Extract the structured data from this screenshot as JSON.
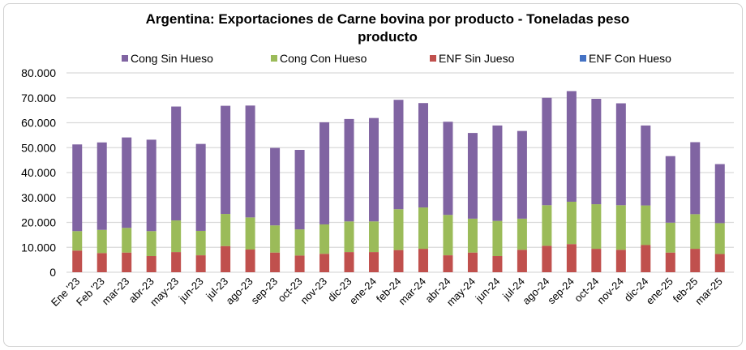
{
  "chart_data": {
    "type": "bar",
    "stacked": true,
    "title": "Argentina: Exportaciones de Carne bovina por producto - Toneladas peso producto",
    "title_lines": [
      "Argentina: Exportaciones de Carne bovina por producto - Toneladas peso",
      "producto"
    ],
    "xlabel": "",
    "ylabel": "",
    "ylim": [
      0,
      80000
    ],
    "yticks": [
      0,
      10000,
      20000,
      30000,
      40000,
      50000,
      60000,
      70000,
      80000
    ],
    "ytick_labels": [
      "0",
      "10.000",
      "20.000",
      "30.000",
      "40.000",
      "50.000",
      "60.000",
      "70.000",
      "80.000"
    ],
    "grid": true,
    "legend_position": "top",
    "categories": [
      "Ene '23",
      "Feb '23",
      "mar-23",
      "abr-23",
      "may-23",
      "jun-23",
      "jul-23",
      "ago-23",
      "sep-23",
      "oct-23",
      "nov-23",
      "dic-23",
      "ene-24",
      "feb-24",
      "mar-24",
      "abr-24",
      "may-24",
      "jun-24",
      "jul-24",
      "ago-24",
      "sep-24",
      "oct-24",
      "nov-24",
      "dic-24",
      "ene-25",
      "feb-25",
      "mar-25"
    ],
    "series": [
      {
        "name": "ENF Con Hueso",
        "color": "#4472c4",
        "values": [
          0,
          0,
          0,
          0,
          0,
          0,
          0,
          0,
          0,
          0,
          0,
          0,
          0,
          0,
          0,
          0,
          0,
          0,
          0,
          0,
          0,
          0,
          0,
          0,
          0,
          0,
          0
        ]
      },
      {
        "name": "ENF Sin Jueso",
        "color": "#c0504d",
        "values": [
          8700,
          7700,
          7900,
          6500,
          8100,
          6800,
          10500,
          9100,
          7900,
          6700,
          7400,
          8100,
          8100,
          8900,
          9400,
          6800,
          7900,
          6500,
          9000,
          10600,
          11300,
          9400,
          9000,
          10900,
          7900,
          9400,
          7300
        ]
      },
      {
        "name": "Cong Con Hueso",
        "color": "#9bbb59",
        "values": [
          7800,
          9300,
          9900,
          10000,
          12700,
          9800,
          12900,
          12900,
          10900,
          10500,
          11800,
          12300,
          12300,
          16400,
          16600,
          16200,
          13600,
          14100,
          12500,
          16300,
          17000,
          17900,
          17900,
          15900,
          12000,
          13900,
          12400
        ]
      },
      {
        "name": "Cong Sin Hueso",
        "color": "#8064a2",
        "values": [
          34800,
          35100,
          36300,
          36700,
          45700,
          34900,
          43400,
          44900,
          31100,
          31900,
          41000,
          41100,
          41500,
          43900,
          41900,
          37400,
          34400,
          38300,
          35200,
          43100,
          44400,
          42300,
          40900,
          32100,
          26700,
          28900,
          23700
        ]
      }
    ],
    "legend_order": [
      "Cong Sin Hueso",
      "Cong Con Hueso",
      "ENF Sin Jueso",
      "ENF Con Hueso"
    ]
  }
}
